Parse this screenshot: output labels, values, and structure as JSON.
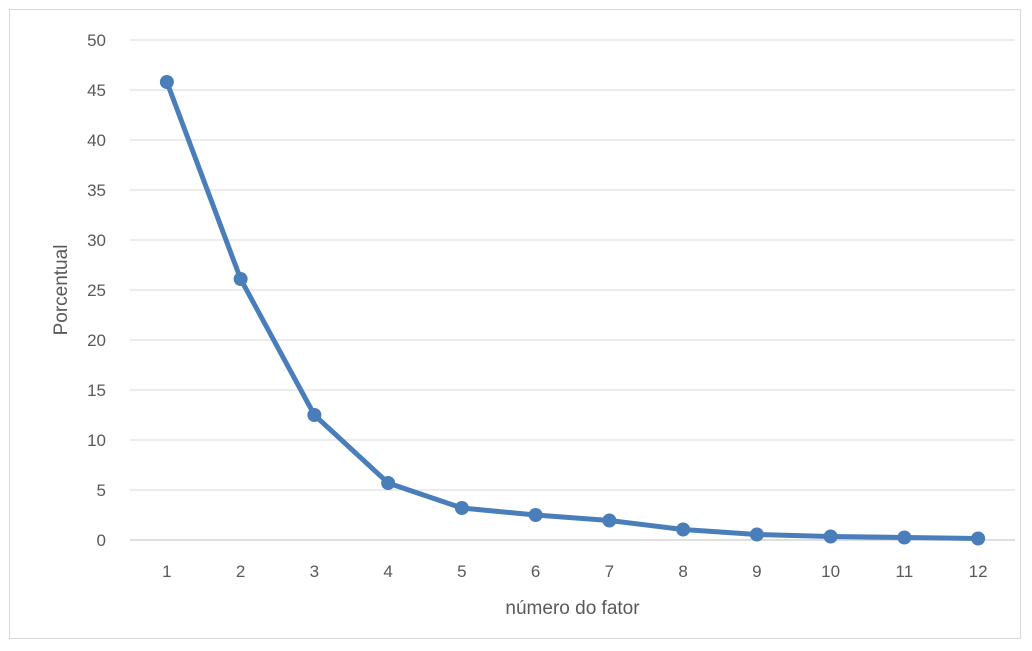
{
  "chart_data": {
    "type": "line",
    "title": "",
    "xlabel": "número do fator",
    "ylabel": "Porcentual",
    "categories": [
      "1",
      "2",
      "3",
      "4",
      "5",
      "6",
      "7",
      "8",
      "9",
      "10",
      "11",
      "12"
    ],
    "series": [
      {
        "values": [
          45.8,
          26.1,
          12.5,
          5.7,
          3.2,
          2.5,
          1.95,
          1.05,
          0.55,
          0.35,
          0.25,
          0.15
        ]
      }
    ],
    "ylim": [
      0,
      50
    ],
    "yticks": [
      "0",
      "5",
      "10",
      "15",
      "20",
      "25",
      "30",
      "35",
      "40",
      "45",
      "50"
    ],
    "grid": true,
    "legend": "none",
    "colors": {
      "line": "#4a7ebb",
      "grid": "#d9d9d9",
      "axis": "#bfbfbf",
      "text": "#595959"
    }
  }
}
